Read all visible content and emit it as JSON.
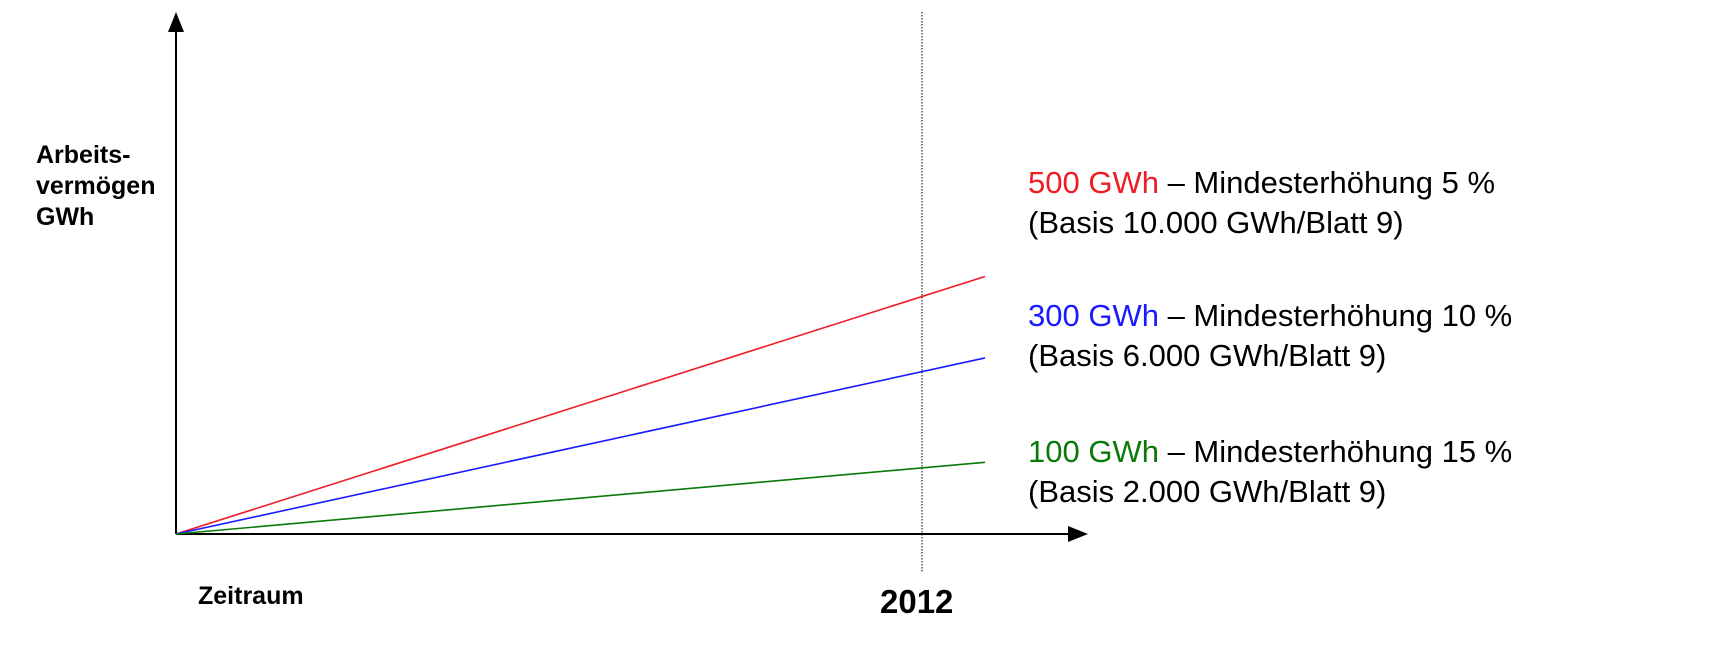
{
  "colors": {
    "series_1": "#ee1c25",
    "series_2": "#1a1aff",
    "series_3": "#0a7a0a",
    "axis": "#000000"
  },
  "chart_data": {
    "type": "line",
    "ylabel_lines": [
      "Arbeits-",
      "vermögen",
      "GWh"
    ],
    "xlabel": "Zeitraum",
    "marker_label": "2012",
    "series": [
      {
        "value_text": "500 GWh",
        "text": " – Mindesterhöhung  5 %",
        "basis": "(Basis 10.000 GWh/Blatt 9)",
        "color": "#ee1c25",
        "relative_end": 0.79
      },
      {
        "value_text": "300 GWh",
        "text": " – Mindesterhöhung 10 %",
        "basis": "(Basis 6.000 GWh/Blatt 9)",
        "color": "#1a1aff",
        "relative_end": 0.54
      },
      {
        "value_text": "100 GWh",
        "text": " – Mindesterhöhung 15 %",
        "basis": "(Basis 2.000 GWh/Blatt 9)",
        "color": "#0a7a0a",
        "relative_end": 0.22
      }
    ]
  }
}
